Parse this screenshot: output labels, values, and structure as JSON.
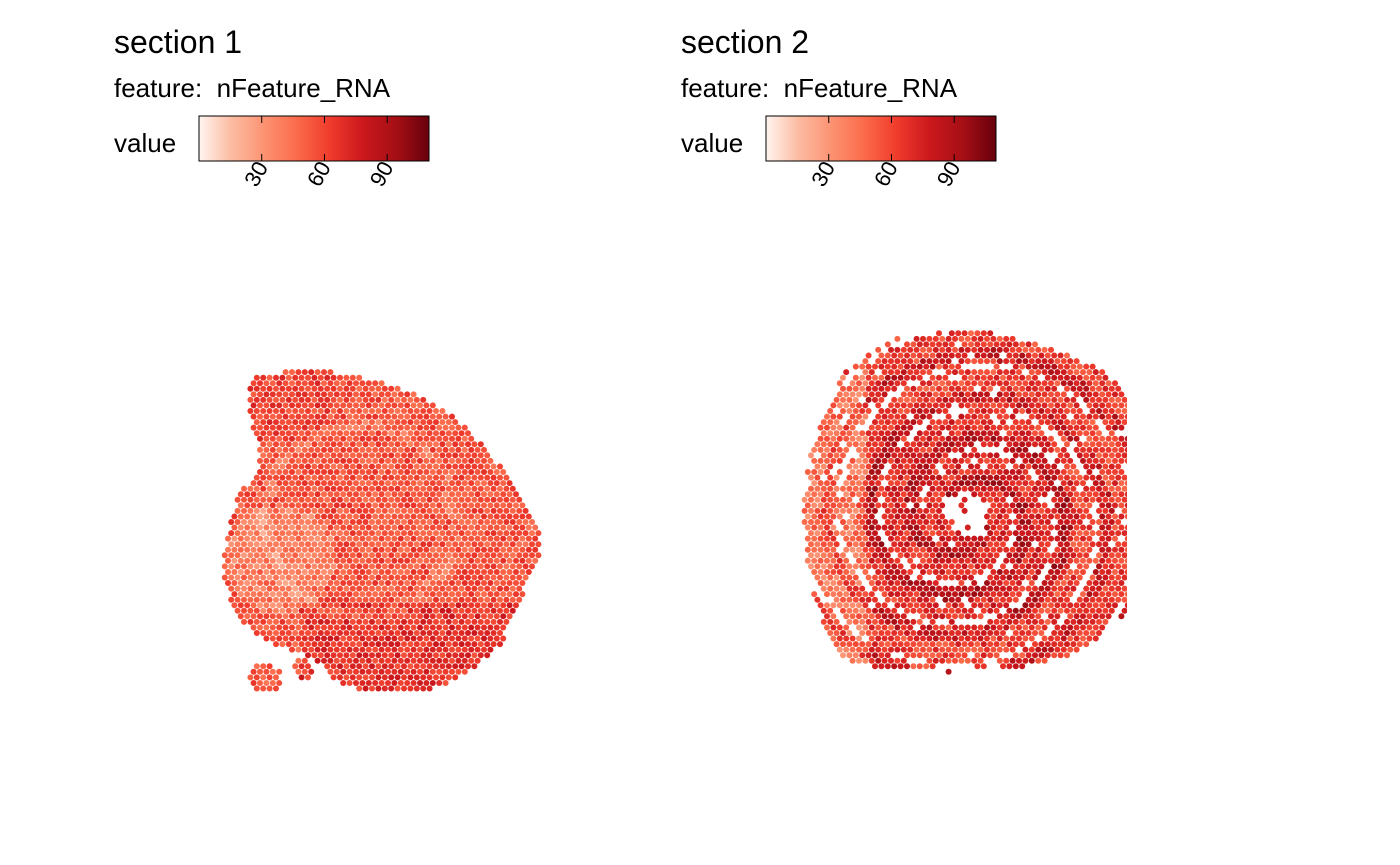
{
  "chart_data": [
    {
      "type": "scatter",
      "title": "section 1",
      "subtitle_prefix": "feature:",
      "subtitle_value": "nFeature_RNA",
      "legend_title": "value",
      "color_scale": [
        "#fff5f0",
        "#fcbba1",
        "#fc9272",
        "#fb6a4a",
        "#ef3b2c",
        "#cb181d",
        "#a50f15",
        "#67000d"
      ],
      "value_range": [
        0,
        110
      ],
      "ticks": [
        30,
        60,
        90
      ],
      "tick_labels": [
        "30",
        "60",
        "90"
      ],
      "typical_value_range": [
        35,
        75
      ],
      "tissue": "brain-section"
    },
    {
      "type": "scatter",
      "title": "section 2",
      "subtitle_prefix": "feature:",
      "subtitle_value": "nFeature_RNA",
      "legend_title": "value",
      "color_scale": [
        "#fff5f0",
        "#fcbba1",
        "#fc9272",
        "#fb6a4a",
        "#ef3b2c",
        "#cb181d",
        "#a50f15",
        "#67000d"
      ],
      "value_range": [
        0,
        110
      ],
      "ticks": [
        30,
        60,
        90
      ],
      "tick_labels": [
        "30",
        "60",
        "90"
      ],
      "typical_value_range": [
        40,
        95
      ],
      "tissue": "rolled-section"
    }
  ]
}
